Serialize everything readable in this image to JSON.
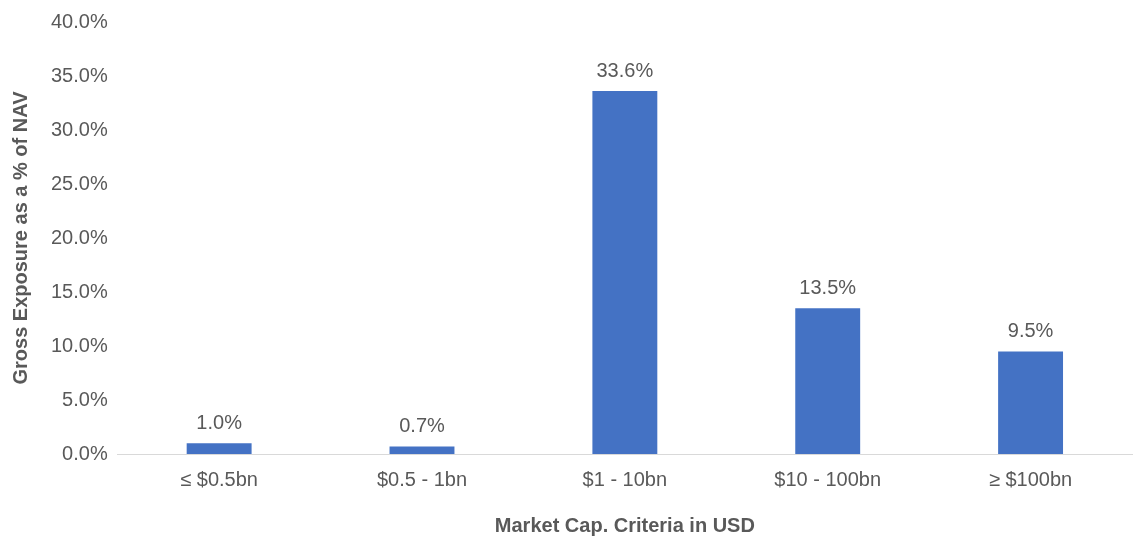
{
  "chart_data": {
    "type": "bar",
    "xlabel": "Market Cap. Criteria in USD",
    "ylabel": "Gross Exposure as a % of NAV",
    "categories": [
      "≤ $0.5bn",
      "$0.5 - 1bn",
      "$1 - 10bn",
      "$10 - 100bn",
      "≥ $100bn"
    ],
    "values": [
      1.0,
      0.7,
      33.6,
      13.5,
      9.5
    ],
    "value_labels": [
      "1.0%",
      "0.7%",
      "33.6%",
      "13.5%",
      "9.5%"
    ],
    "color": "#4472c4",
    "ylim": [
      0,
      40
    ],
    "yticks": [
      {
        "value": 0,
        "label": "0.0%"
      },
      {
        "value": 5,
        "label": "5.0%"
      },
      {
        "value": 10,
        "label": "10.0%"
      },
      {
        "value": 15,
        "label": "15.0%"
      },
      {
        "value": 20,
        "label": "20.0%"
      },
      {
        "value": 25,
        "label": "25.0%"
      },
      {
        "value": 30,
        "label": "30.0%"
      },
      {
        "value": 35,
        "label": "35.0%"
      },
      {
        "value": 40,
        "label": "40.0%"
      }
    ],
    "grid": false,
    "legend": false
  }
}
